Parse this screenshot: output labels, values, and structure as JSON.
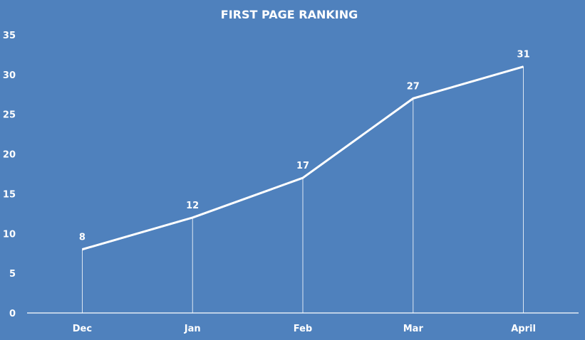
{
  "chart_data": {
    "type": "line",
    "title": "FIRST PAGE RANKING",
    "categories": [
      "Dec",
      "Jan",
      "Feb",
      "Mar",
      "April"
    ],
    "series": [
      {
        "values": [
          8,
          12,
          17,
          27,
          31
        ]
      }
    ],
    "ylim": [
      0,
      35
    ],
    "yticks": [
      0,
      5,
      10,
      15,
      20,
      25,
      30,
      35
    ],
    "data_labels": true,
    "drop_lines": true,
    "grid": false,
    "colors": {
      "background": "#4f81bd",
      "line": "#ffffff",
      "text": "#ffffff"
    }
  }
}
